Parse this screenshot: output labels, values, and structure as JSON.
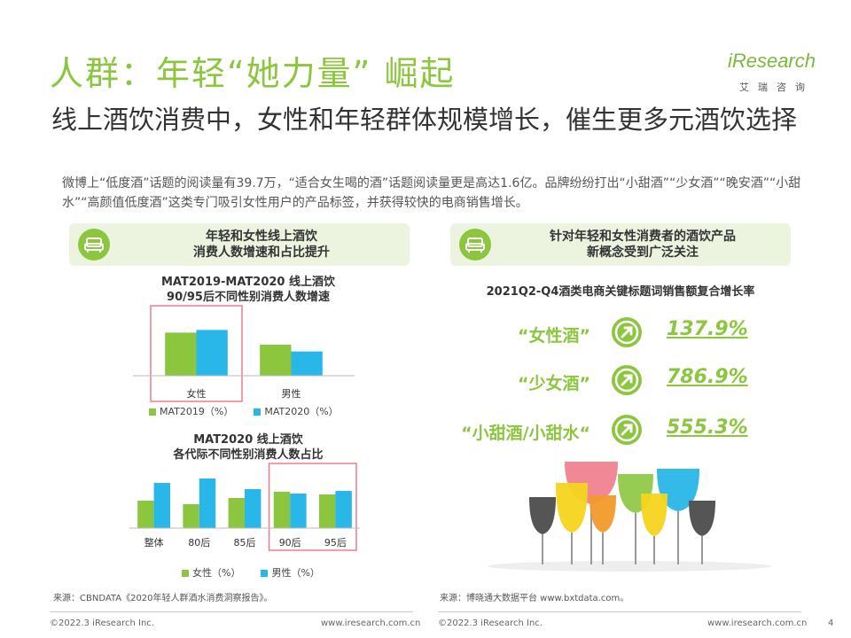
{
  "header": {
    "title": "人群：年轻“她力量” 崛起",
    "subtitle": "线上酒饮消费中，女性和年轻群体规模增长，催生更多元酒饮选择",
    "description": "微博上“低度酒”话题的阅读量有39.7万，“适合女生喝的酒”话题阅读量更是高达1.6亿。品牌纷纷打出“小甜酒”“少女酒”“晚安酒”“小甜水”“高颜值低度酒”这类专门吸引女性用户的产品标签，并获得较快的电商销售增长。"
  },
  "logo": {
    "main": "iResearch",
    "sub": "艾瑞咨询"
  },
  "left_card": {
    "line1": "年轻和女性线上酒饮",
    "line2": "消费人数增速和占比提升"
  },
  "right_card": {
    "line1": "针对年轻和女性消费者的酒饮产品",
    "line2": "新概念受到广泛关注"
  },
  "colors": {
    "green": "#8cc63f",
    "blue": "#29b6e8",
    "highlight": "#f07b8a"
  },
  "chart_data": [
    {
      "type": "bar",
      "title": "MAT2019-MAT2020 线上酒饮",
      "subtitle": "90/95后不同性别消费人数增速",
      "categories": [
        "女性",
        "男性"
      ],
      "series": [
        {
          "name": "MAT2019（%）",
          "values": [
            64,
            46
          ]
        },
        {
          "name": "MAT2020（%）",
          "values": [
            68,
            36
          ]
        }
      ],
      "ylim": [
        0,
        100
      ],
      "highlight": "女性",
      "legend": "bottom"
    },
    {
      "type": "bar",
      "title": "MAT2020 线上酒饮",
      "subtitle": "各代际不同性别消费人数占比",
      "categories": [
        "整体",
        "80后",
        "85后",
        "90后",
        "95后"
      ],
      "series": [
        {
          "name": "女性（%）",
          "values": [
            31,
            27,
            34,
            41,
            38
          ]
        },
        {
          "name": "男性（%）",
          "values": [
            51,
            56,
            44,
            39,
            42
          ]
        }
      ],
      "ylim": [
        0,
        70
      ],
      "highlight": [
        "90后",
        "95后"
      ],
      "legend": "bottom"
    }
  ],
  "growth": {
    "title": "2021Q2-Q4酒类电商关键标题词销售额复合增长率",
    "items": [
      {
        "keyword": "“女性酒”",
        "value": "137.9%"
      },
      {
        "keyword": "“少女酒”",
        "value": "786.9%"
      },
      {
        "keyword": "“小甜酒/小甜水“",
        "value": "555.3%"
      }
    ]
  },
  "sources": {
    "left": "来源：CBNDATA《2020年轻人群酒水消费洞察报告》。",
    "right": "来源：博晓通大数据平台 www.bxtdata.com。"
  },
  "footer": {
    "left_copy": "©2022.3 iResearch Inc.",
    "left_url": "www.iresearch.com.cn",
    "right_copy": "©2022.3 iResearch Inc.",
    "right_url": "www.iresearch.com.cn",
    "page": "4"
  }
}
